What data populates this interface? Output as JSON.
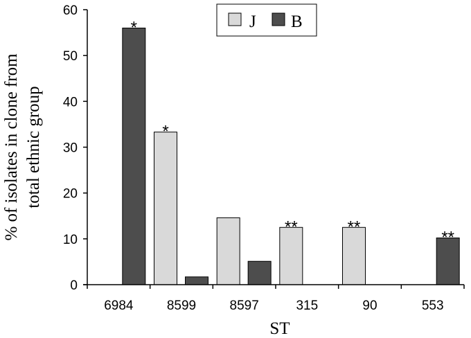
{
  "chart_data": {
    "type": "bar",
    "title": "",
    "xlabel": "ST",
    "ylabel_line1": "% of isolates in clone from",
    "ylabel_line2": "total ethnic group",
    "categories": [
      "6984",
      "8599",
      "8597",
      "315",
      "90",
      "553"
    ],
    "series": [
      {
        "name": "J",
        "color": "#d9d9d9",
        "values": [
          0,
          33.3,
          14.6,
          12.5,
          12.5,
          0
        ]
      },
      {
        "name": "B",
        "color": "#4d4d4d",
        "values": [
          56,
          1.7,
          5.1,
          0,
          0,
          10.2
        ]
      }
    ],
    "annotations": [
      {
        "category": "6984",
        "series": "B",
        "text": "*"
      },
      {
        "category": "8599",
        "series": "J",
        "text": "*"
      },
      {
        "category": "315",
        "series": "J",
        "text": "**"
      },
      {
        "category": "90",
        "series": "J",
        "text": "**"
      },
      {
        "category": "553",
        "series": "B",
        "text": "**"
      }
    ],
    "ylim": [
      0,
      60
    ],
    "yticks": [
      "0",
      "10",
      "20",
      "30",
      "40",
      "50",
      "60"
    ],
    "grid": false,
    "legend_position": "top-center"
  }
}
